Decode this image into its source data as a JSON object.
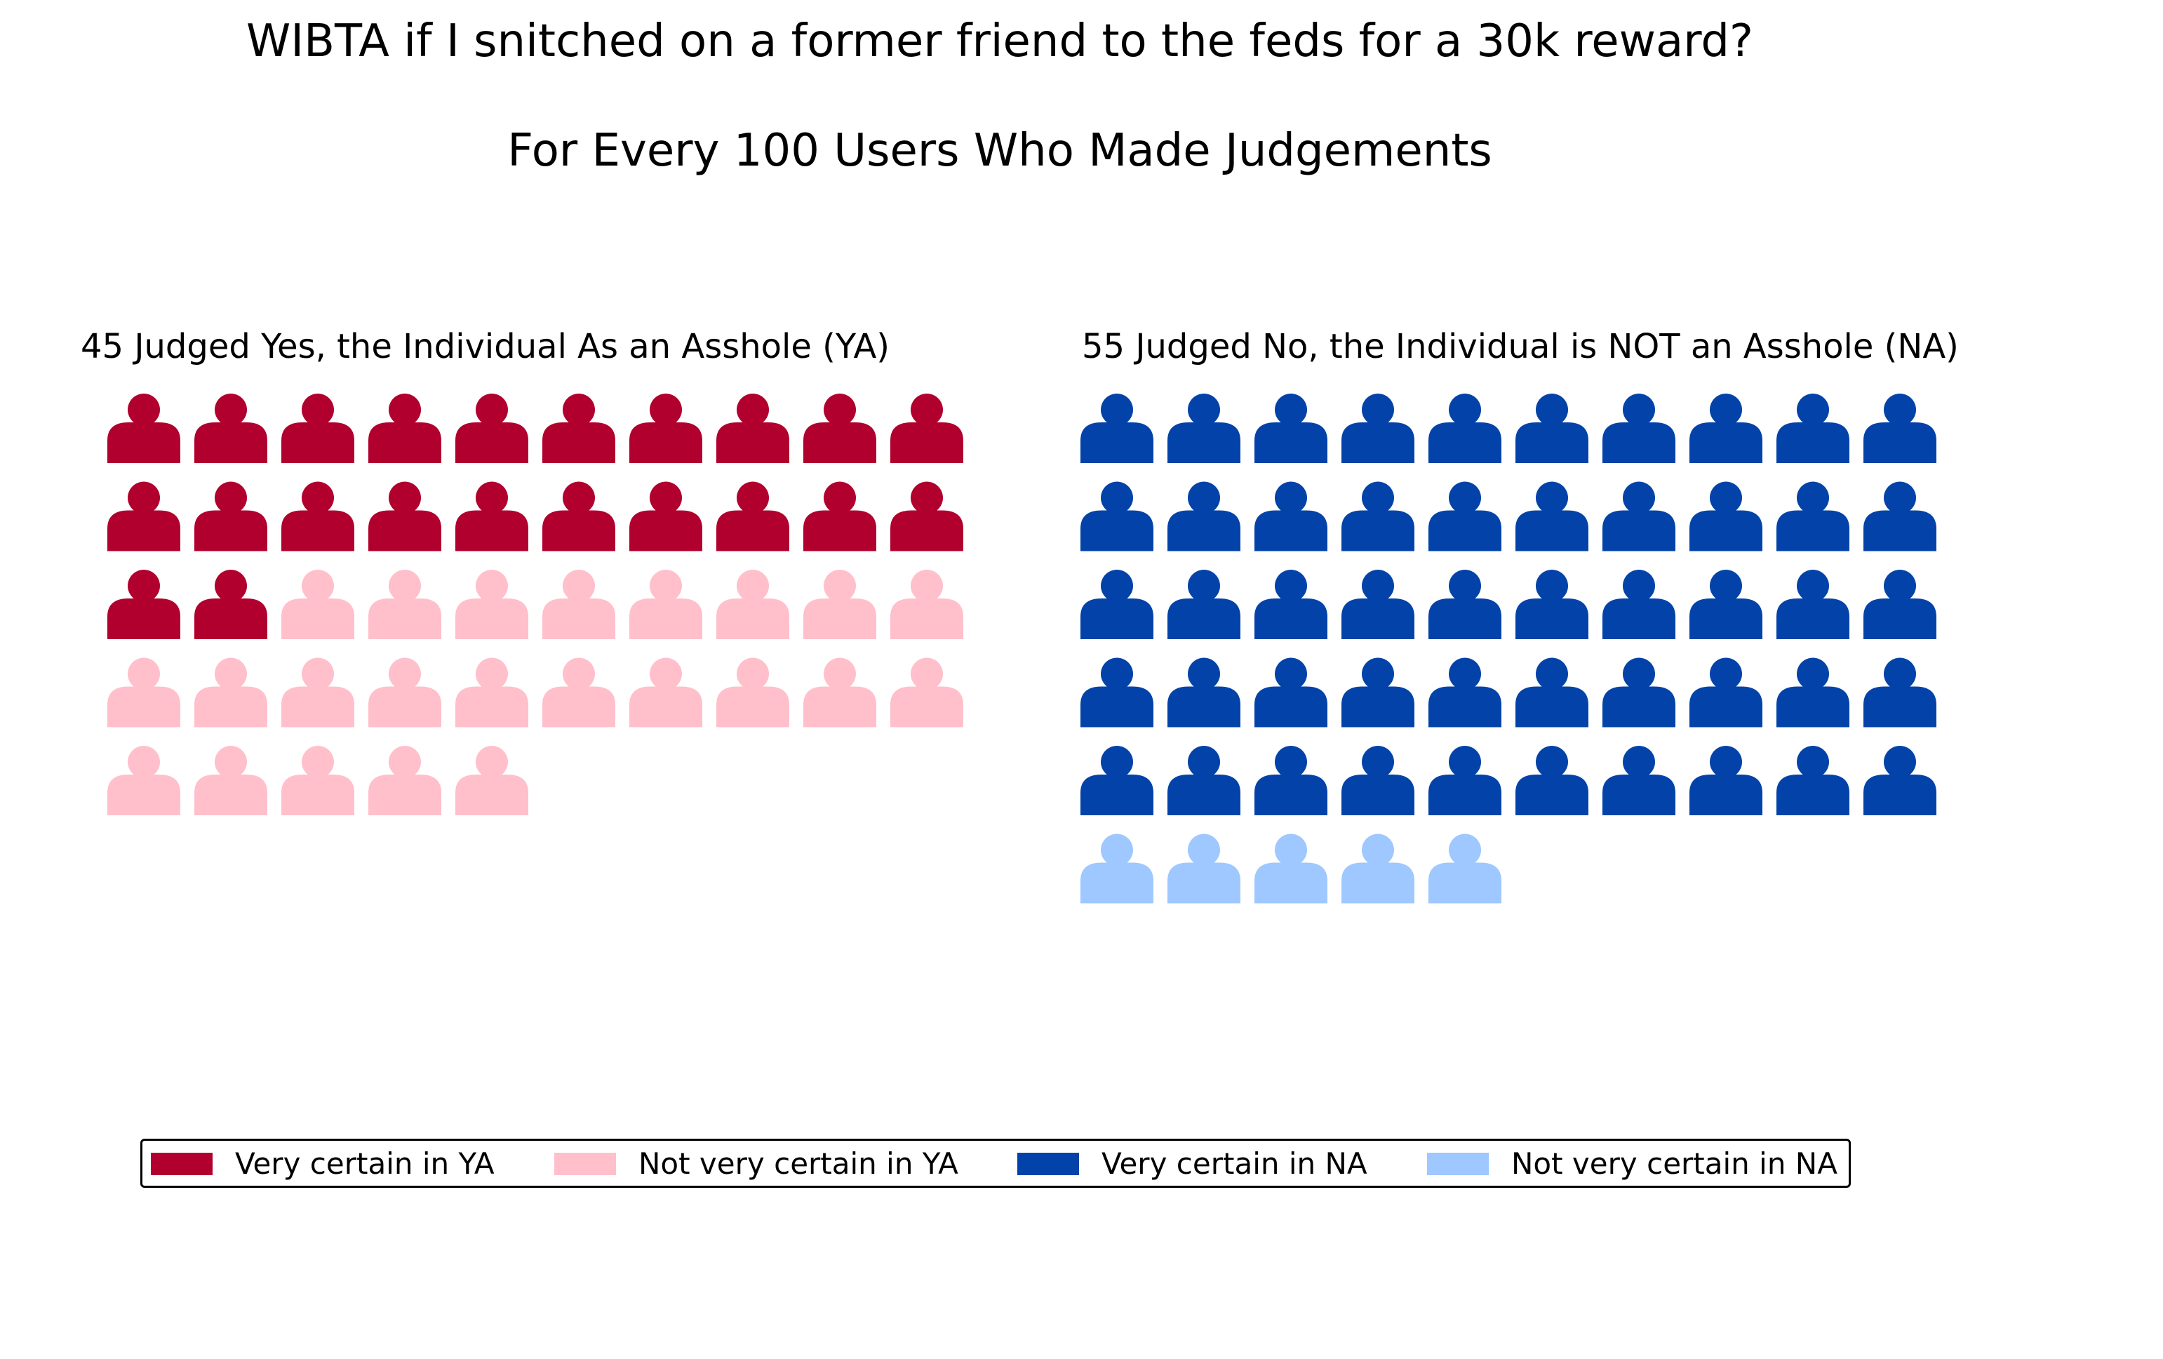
{
  "title": "WIBTA if I snitched on a former friend to the feds for a 30k reward?",
  "subtitle": "For Every 100 Users Who Made Judgements",
  "colors": {
    "very_certain_ya": "#b1002e",
    "not_very_certain_ya": "#ffc0cb",
    "very_certain_na": "#0343a9",
    "not_very_certain_na": "#9ec8ff"
  },
  "icon": "person-icon",
  "chart_data": {
    "type": "pictogram",
    "title": "WIBTA if I snitched on a former friend to the feds for a 30k reward?",
    "subtitle": "For Every 100 Users Who Made Judgements",
    "panels": [
      {
        "title": "45 Judged Yes, the Individual As an Asshole (YA)",
        "total": 45,
        "columns": 10,
        "segments": [
          {
            "name": "Very certain in YA",
            "count": 22,
            "color": "#b1002e"
          },
          {
            "name": "Not very certain in YA",
            "count": 23,
            "color": "#ffc0cb"
          }
        ]
      },
      {
        "title": "55 Judged No, the Individual is NOT an Asshole (NA)",
        "total": 55,
        "columns": 10,
        "segments": [
          {
            "name": "Very certain in NA",
            "count": 50,
            "color": "#0343a9"
          },
          {
            "name": "Not very certain in NA",
            "count": 5,
            "color": "#9ec8ff"
          }
        ]
      }
    ],
    "legend": {
      "placement": "bottom",
      "entries": [
        {
          "label": "Very certain in YA",
          "color": "#b1002e"
        },
        {
          "label": "Not very certain in YA",
          "color": "#ffc0cb"
        },
        {
          "label": "Very certain in NA",
          "color": "#0343a9"
        },
        {
          "label": "Not very certain in NA",
          "color": "#9ec8ff"
        }
      ]
    }
  }
}
